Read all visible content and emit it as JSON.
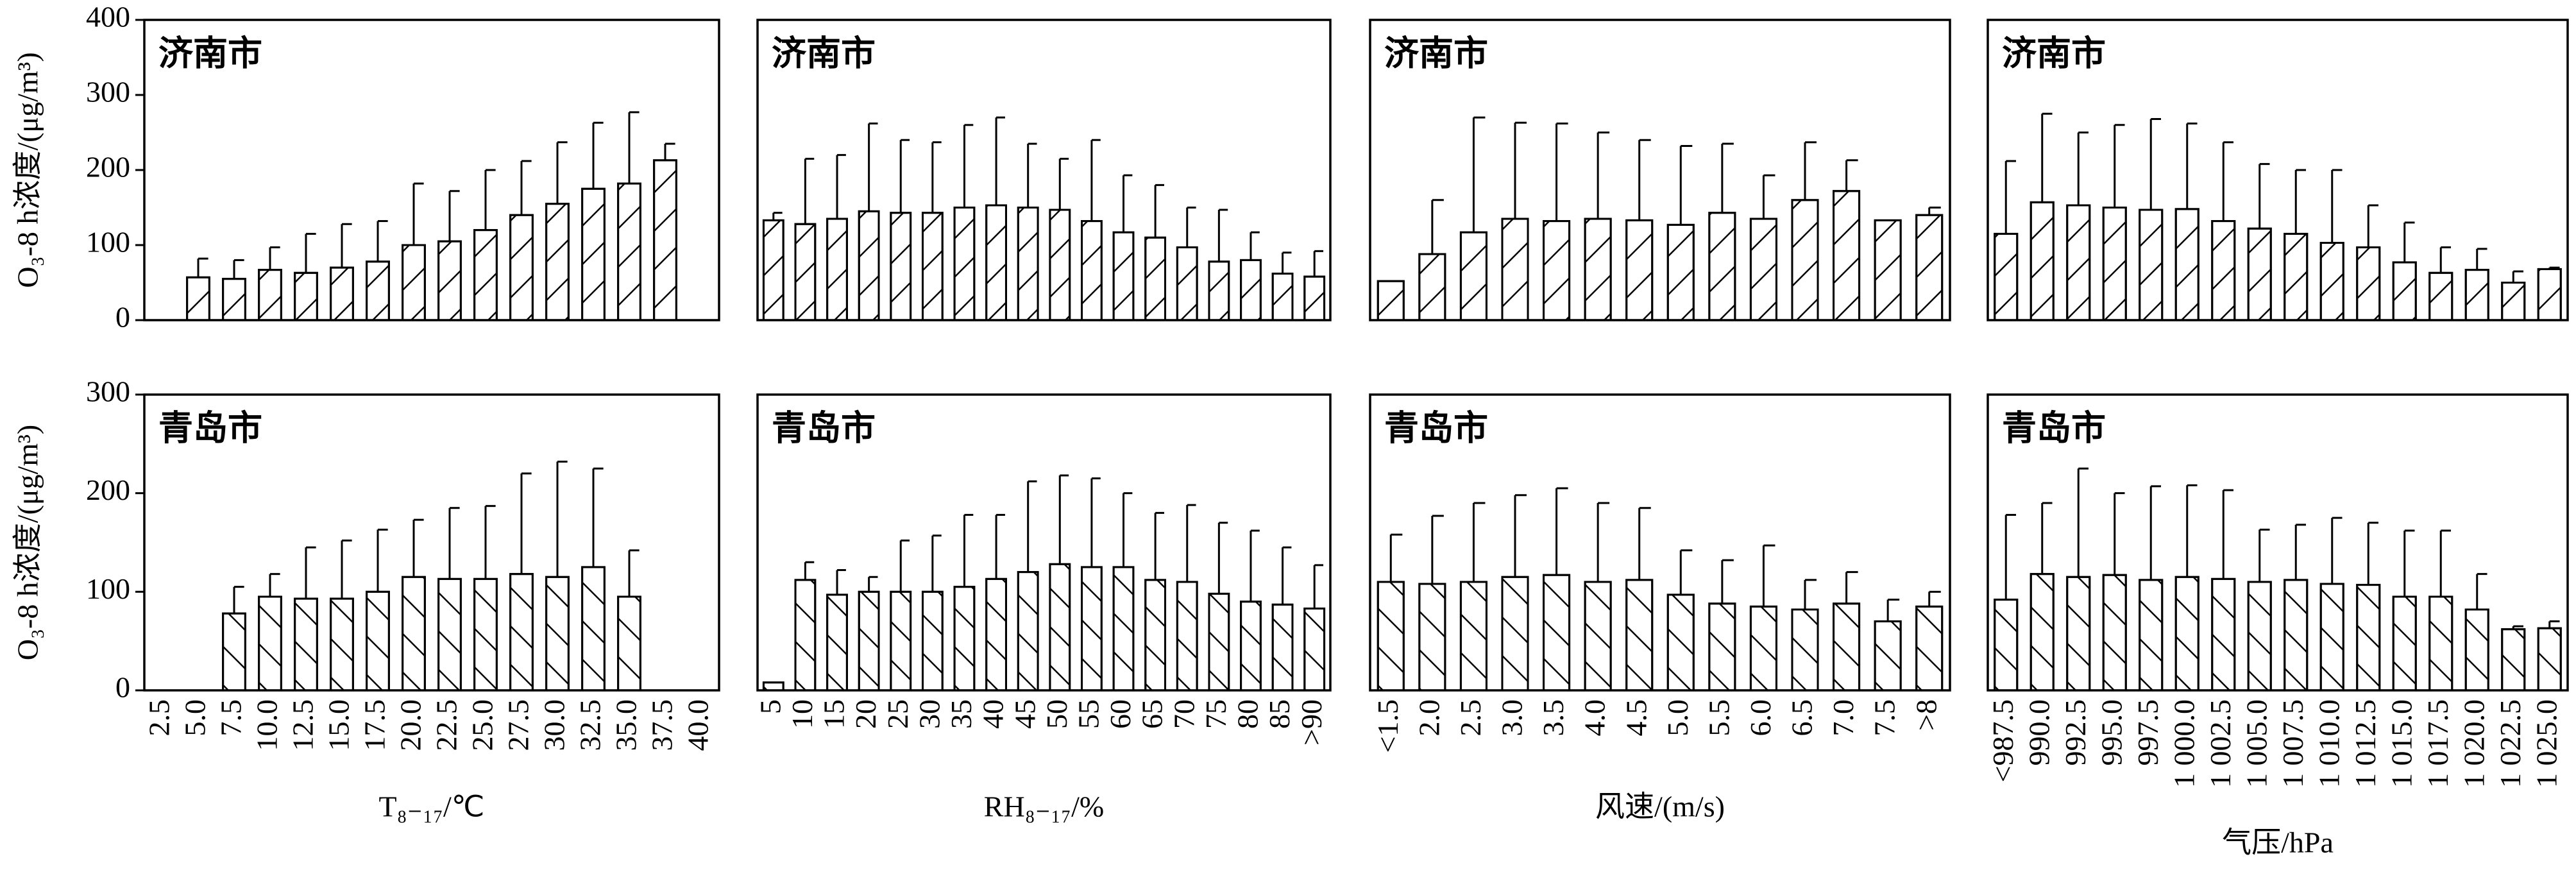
{
  "chart_data": {
    "type": "bar",
    "rows": [
      {
        "ylim": [
          0,
          400
        ],
        "yticks": [
          0,
          100,
          200,
          300,
          400
        ],
        "y_label": "O₃-8 h浓度/(μg/m³)",
        "hatch": "/"
      },
      {
        "ylim": [
          0,
          300
        ],
        "yticks": [
          0,
          100,
          200,
          300
        ],
        "y_label": "O₃-8 h浓度/(μg/m³)",
        "hatch": "\\"
      }
    ],
    "columns": [
      {
        "x_label": "T₈₋₁₇/℃",
        "categories": [
          "2.5",
          "5.0",
          "7.5",
          "10.0",
          "12.5",
          "15.0",
          "17.5",
          "20.0",
          "22.5",
          "25.0",
          "27.5",
          "30.0",
          "32.5",
          "35.0",
          "37.5",
          "40.0"
        ]
      },
      {
        "x_label": "RH₈₋₁₇/%",
        "categories": [
          "5",
          "10",
          "15",
          "20",
          "25",
          "30",
          "35",
          "40",
          "45",
          "50",
          "55",
          "60",
          "65",
          "70",
          "75",
          "80",
          "85",
          ">90"
        ]
      },
      {
        "x_label": "风速/(m/s)",
        "categories": [
          "<1.5",
          "2.0",
          "2.5",
          "3.0",
          "3.5",
          "4.0",
          "4.5",
          "5.0",
          "5.5",
          "6.0",
          "6.5",
          "7.0",
          "7.5",
          ">8"
        ]
      },
      {
        "x_label": "气压/hPa",
        "categories": [
          "<987.5",
          "990.0",
          "992.5",
          "995.0",
          "997.5",
          "1 000.0",
          "1 002.5",
          "1 005.0",
          "1 007.5",
          "1 010.0",
          "1 012.5",
          "1 015.0",
          "1 017.5",
          "1 020.0",
          "1 022.5",
          "1 025.0"
        ]
      }
    ],
    "panels": [
      [
        {
          "title": "济南市",
          "values": [
            null,
            57,
            55,
            67,
            63,
            70,
            78,
            100,
            105,
            120,
            140,
            155,
            175,
            182,
            213,
            null
          ],
          "errors": [
            null,
            25,
            25,
            30,
            52,
            58,
            54,
            82,
            67,
            80,
            72,
            82,
            88,
            95,
            22,
            null
          ]
        },
        {
          "title": "济南市",
          "values": [
            133,
            128,
            135,
            145,
            143,
            143,
            150,
            153,
            150,
            147,
            132,
            117,
            110,
            97,
            78,
            80,
            62,
            58
          ],
          "errors": [
            10,
            87,
            85,
            117,
            97,
            94,
            110,
            117,
            85,
            68,
            108,
            76,
            70,
            53,
            69,
            37,
            28,
            34
          ]
        },
        {
          "title": "济南市",
          "values": [
            52,
            88,
            117,
            135,
            132,
            135,
            133,
            127,
            143,
            135,
            160,
            172,
            133,
            140
          ],
          "errors": [
            null,
            72,
            153,
            128,
            130,
            115,
            107,
            105,
            92,
            58,
            77,
            41,
            null,
            10
          ]
        },
        {
          "title": "济南市",
          "values": [
            115,
            157,
            153,
            150,
            147,
            148,
            132,
            122,
            115,
            103,
            97,
            77,
            63,
            67,
            50,
            68
          ],
          "errors": [
            97,
            118,
            97,
            110,
            121,
            114,
            105,
            86,
            85,
            97,
            56,
            53,
            34,
            28,
            15,
            2
          ]
        }
      ],
      [
        {
          "title": "青岛市",
          "values": [
            null,
            null,
            78,
            95,
            93,
            93,
            100,
            115,
            113,
            113,
            118,
            115,
            125,
            95,
            null,
            null
          ],
          "errors": [
            null,
            null,
            27,
            23,
            52,
            59,
            63,
            58,
            72,
            74,
            102,
            117,
            100,
            47,
            null,
            null
          ]
        },
        {
          "title": "青岛市",
          "values": [
            8,
            112,
            97,
            100,
            100,
            100,
            105,
            113,
            120,
            128,
            125,
            125,
            112,
            110,
            98,
            90,
            87,
            83
          ],
          "errors": [
            null,
            18,
            25,
            15,
            52,
            57,
            73,
            65,
            92,
            90,
            90,
            75,
            68,
            78,
            72,
            72,
            58,
            44
          ]
        },
        {
          "title": "青岛市",
          "values": [
            110,
            108,
            110,
            115,
            117,
            110,
            112,
            97,
            88,
            85,
            82,
            88,
            70,
            85
          ],
          "errors": [
            48,
            69,
            80,
            83,
            88,
            80,
            73,
            45,
            44,
            62,
            30,
            32,
            22,
            15
          ]
        },
        {
          "title": "青岛市",
          "values": [
            92,
            118,
            115,
            117,
            112,
            115,
            113,
            110,
            112,
            108,
            107,
            95,
            95,
            82,
            62,
            63
          ],
          "errors": [
            86,
            72,
            110,
            83,
            95,
            93,
            90,
            53,
            56,
            67,
            63,
            67,
            67,
            36,
            3,
            7
          ]
        }
      ]
    ]
  }
}
